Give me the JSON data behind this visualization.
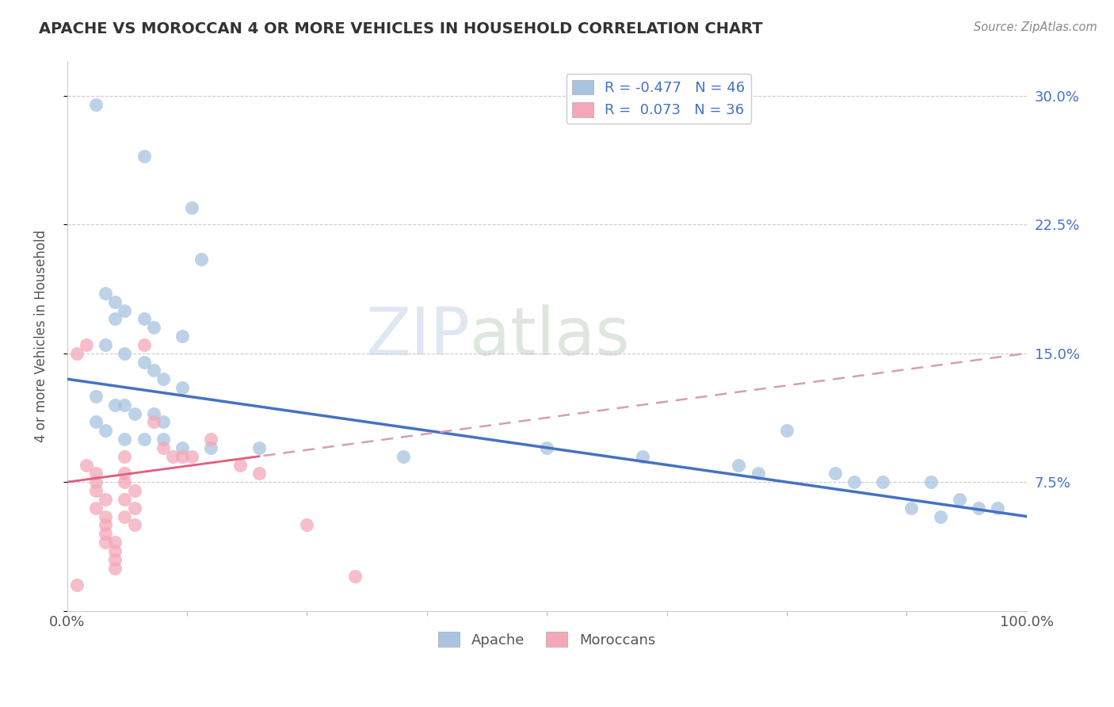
{
  "title": "APACHE VS MOROCCAN 4 OR MORE VEHICLES IN HOUSEHOLD CORRELATION CHART",
  "source": "Source: ZipAtlas.com",
  "ylabel": "4 or more Vehicles in Household",
  "xlim": [
    0,
    100
  ],
  "ylim": [
    0,
    32
  ],
  "yticks": [
    0,
    7.5,
    15.0,
    22.5,
    30.0
  ],
  "ytick_labels": [
    "",
    "7.5%",
    "15.0%",
    "22.5%",
    "30.0%"
  ],
  "xticks": [
    0,
    100
  ],
  "xtick_labels": [
    "0.0%",
    "100.0%"
  ],
  "watermark_zip": "ZIP",
  "watermark_atlas": "atlas",
  "legend_apache_r": "-0.477",
  "legend_apache_n": "46",
  "legend_moroccan_r": "0.073",
  "legend_moroccan_n": "36",
  "apache_color": "#a8c4e0",
  "moroccan_color": "#f4a7b9",
  "apache_line_color": "#4472c4",
  "moroccan_line_color": "#e06080",
  "moroccan_dashed_color": "#d4a0b0",
  "grid_color": "#cccccc",
  "apache_line_x0": 0,
  "apache_line_y0": 13.5,
  "apache_line_x1": 100,
  "apache_line_y1": 5.5,
  "moroccan_line_x0": 0,
  "moroccan_line_y0": 7.5,
  "moroccan_line_x1": 100,
  "moroccan_line_y1": 15.0,
  "apache_points": [
    [
      3,
      29.5
    ],
    [
      8,
      26.5
    ],
    [
      13,
      23.5
    ],
    [
      14,
      20.5
    ],
    [
      4,
      18.5
    ],
    [
      5,
      18.0
    ],
    [
      6,
      17.5
    ],
    [
      8,
      17.0
    ],
    [
      5,
      17.0
    ],
    [
      9,
      16.5
    ],
    [
      12,
      16.0
    ],
    [
      4,
      15.5
    ],
    [
      6,
      15.0
    ],
    [
      8,
      14.5
    ],
    [
      9,
      14.0
    ],
    [
      10,
      13.5
    ],
    [
      12,
      13.0
    ],
    [
      3,
      12.5
    ],
    [
      5,
      12.0
    ],
    [
      6,
      12.0
    ],
    [
      7,
      11.5
    ],
    [
      9,
      11.5
    ],
    [
      10,
      11.0
    ],
    [
      3,
      11.0
    ],
    [
      4,
      10.5
    ],
    [
      6,
      10.0
    ],
    [
      8,
      10.0
    ],
    [
      10,
      10.0
    ],
    [
      12,
      9.5
    ],
    [
      15,
      9.5
    ],
    [
      20,
      9.5
    ],
    [
      35,
      9.0
    ],
    [
      50,
      9.5
    ],
    [
      60,
      9.0
    ],
    [
      70,
      8.5
    ],
    [
      72,
      8.0
    ],
    [
      75,
      10.5
    ],
    [
      80,
      8.0
    ],
    [
      82,
      7.5
    ],
    [
      85,
      7.5
    ],
    [
      88,
      6.0
    ],
    [
      90,
      7.5
    ],
    [
      91,
      5.5
    ],
    [
      93,
      6.5
    ],
    [
      95,
      6.0
    ],
    [
      97,
      6.0
    ]
  ],
  "moroccan_points": [
    [
      1,
      15.0
    ],
    [
      2,
      15.5
    ],
    [
      8,
      15.5
    ],
    [
      2,
      8.5
    ],
    [
      6,
      9.0
    ],
    [
      3,
      8.0
    ],
    [
      6,
      8.0
    ],
    [
      9,
      11.0
    ],
    [
      10,
      9.5
    ],
    [
      11,
      9.0
    ],
    [
      12,
      9.0
    ],
    [
      15,
      10.0
    ],
    [
      18,
      8.5
    ],
    [
      20,
      8.0
    ],
    [
      3,
      7.5
    ],
    [
      6,
      7.5
    ],
    [
      7,
      7.0
    ],
    [
      3,
      7.0
    ],
    [
      4,
      6.5
    ],
    [
      6,
      6.5
    ],
    [
      3,
      6.0
    ],
    [
      7,
      6.0
    ],
    [
      4,
      5.5
    ],
    [
      6,
      5.5
    ],
    [
      7,
      5.0
    ],
    [
      4,
      5.0
    ],
    [
      4,
      4.5
    ],
    [
      5,
      4.0
    ],
    [
      4,
      4.0
    ],
    [
      5,
      3.5
    ],
    [
      5,
      3.0
    ],
    [
      25,
      5.0
    ],
    [
      5,
      2.5
    ],
    [
      30,
      2.0
    ],
    [
      1,
      1.5
    ],
    [
      13,
      9.0
    ]
  ]
}
